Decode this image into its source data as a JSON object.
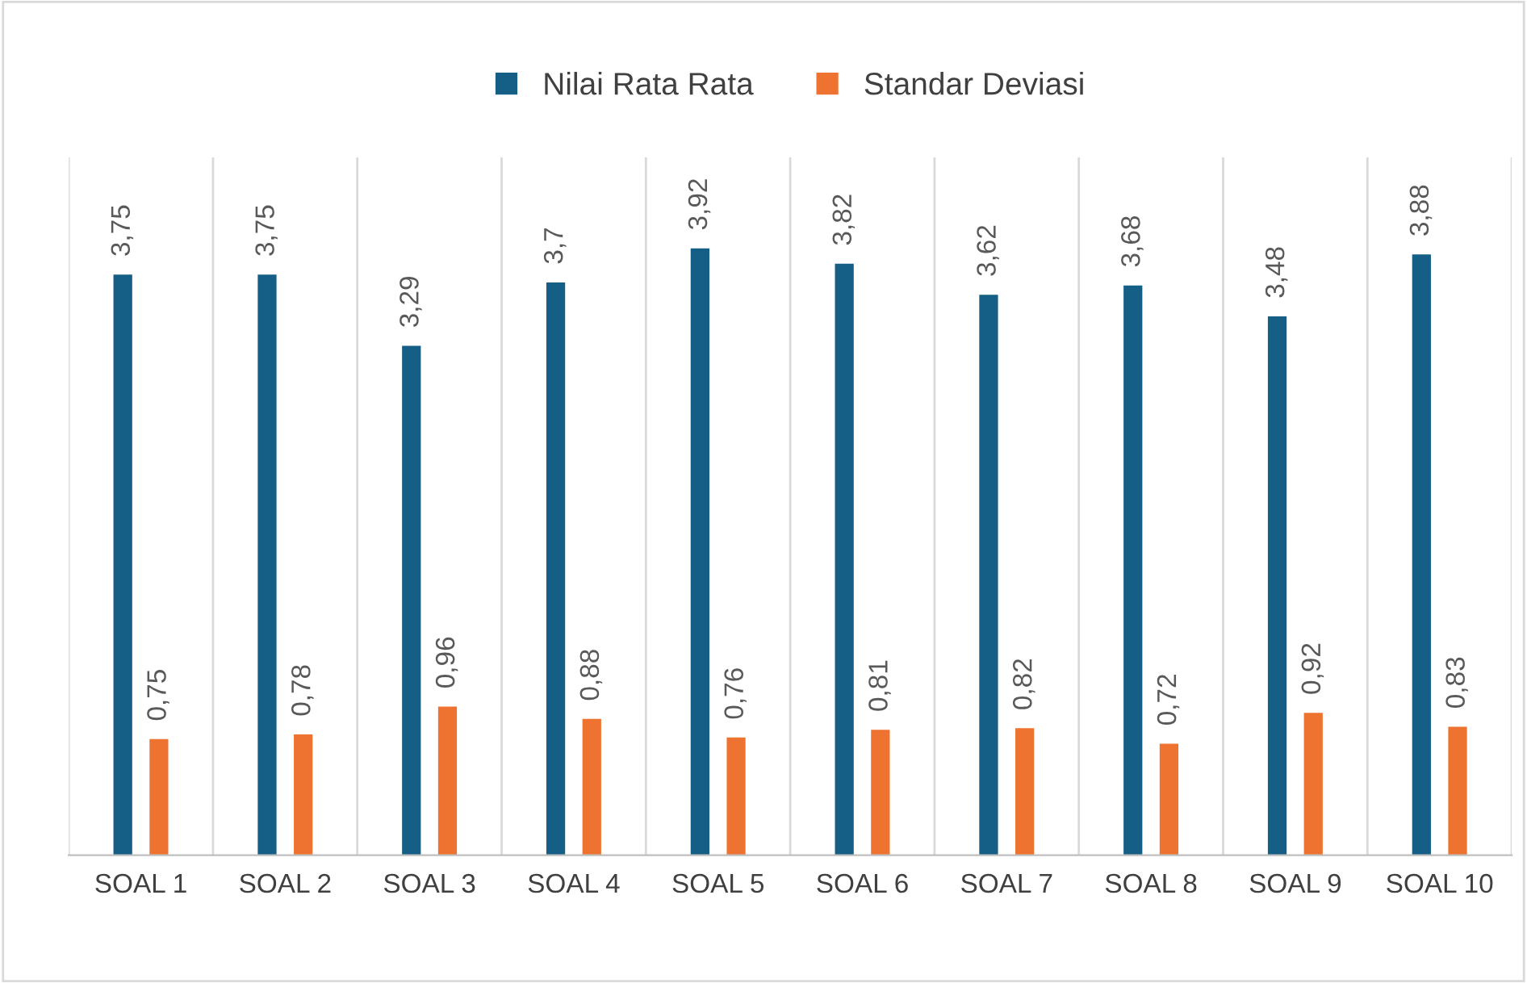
{
  "chart_data": {
    "type": "bar",
    "categories": [
      "SOAL 1",
      "SOAL 2",
      "SOAL 3",
      "SOAL 4",
      "SOAL 5",
      "SOAL 6",
      "SOAL 7",
      "SOAL 8",
      "SOAL 9",
      "SOAL 10"
    ],
    "series": [
      {
        "name": "Nilai Rata Rata",
        "color": "#155e85",
        "values": [
          3.75,
          3.75,
          3.29,
          3.7,
          3.92,
          3.82,
          3.62,
          3.68,
          3.48,
          3.88
        ],
        "value_labels": [
          "3,75",
          "3,75",
          "3,29",
          "3,7",
          "3,92",
          "3,82",
          "3,62",
          "3,68",
          "3,48",
          "3,88"
        ]
      },
      {
        "name": "Standar Deviasi",
        "color": "#ee7230",
        "values": [
          0.75,
          0.78,
          0.96,
          0.88,
          0.76,
          0.81,
          0.82,
          0.72,
          0.92,
          0.83
        ],
        "value_labels": [
          "0,75",
          "0,78",
          "0,96",
          "0,88",
          "0,76",
          "0,81",
          "0,82",
          "0,72",
          "0,92",
          "0,83"
        ]
      }
    ],
    "tick_labels": "x",
    "grid": "x",
    "legend": "top"
  }
}
